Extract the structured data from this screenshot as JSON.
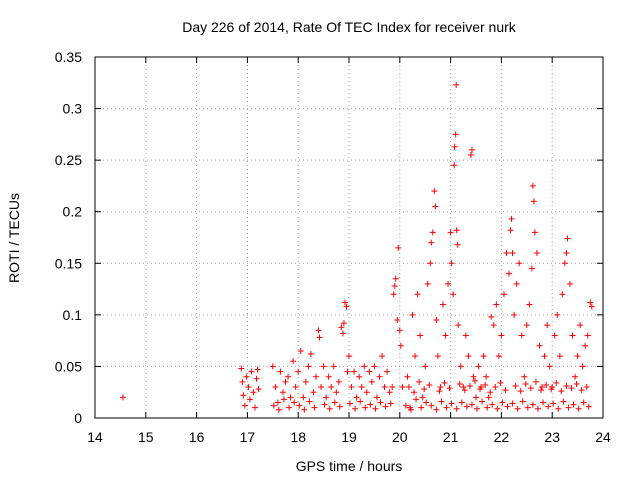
{
  "chart_data": {
    "type": "scatter",
    "title": "Day 226 of 2014, Rate Of TEC Index for receiver nurk",
    "xlabel": "GPS time / hours",
    "ylabel": "ROTI / TECUs",
    "xlim": [
      14,
      24
    ],
    "ylim": [
      0,
      0.35
    ],
    "xticks": [
      14,
      15,
      16,
      17,
      18,
      19,
      20,
      21,
      22,
      23,
      24
    ],
    "yticks": [
      0,
      0.05,
      0.1,
      0.15,
      0.2,
      0.25,
      0.3,
      0.35
    ],
    "xtick_labels": [
      "14",
      "15",
      "16",
      "17",
      "18",
      "19",
      "20",
      "21",
      "22",
      "23",
      "24"
    ],
    "ytick_labels": [
      "0",
      "0.05",
      "0.1",
      "0.15",
      "0.2",
      "0.25",
      "0.3",
      "0.35"
    ],
    "grid": true,
    "marker": "+",
    "color": "#ff0000",
    "series": [
      {
        "name": "ROTI",
        "points": [
          [
            14.55,
            0.02
          ],
          [
            16.88,
            0.048
          ],
          [
            16.9,
            0.035
          ],
          [
            16.92,
            0.022
          ],
          [
            16.95,
            0.012
          ],
          [
            16.98,
            0.04
          ],
          [
            17.02,
            0.03
          ],
          [
            17.05,
            0.018
          ],
          [
            17.08,
            0.045
          ],
          [
            17.12,
            0.025
          ],
          [
            17.15,
            0.01
          ],
          [
            17.18,
            0.038
          ],
          [
            17.2,
            0.047
          ],
          [
            17.22,
            0.028
          ],
          [
            17.5,
            0.05
          ],
          [
            17.55,
            0.03
          ],
          [
            17.6,
            0.015
          ],
          [
            17.65,
            0.045
          ],
          [
            17.7,
            0.025
          ],
          [
            17.75,
            0.035
          ],
          [
            17.8,
            0.04
          ],
          [
            17.85,
            0.02
          ],
          [
            17.9,
            0.055
          ],
          [
            17.95,
            0.03
          ],
          [
            18.0,
            0.045
          ],
          [
            18.05,
            0.065
          ],
          [
            18.1,
            0.02
          ],
          [
            18.15,
            0.035
          ],
          [
            18.2,
            0.05
          ],
          [
            18.25,
            0.062
          ],
          [
            18.3,
            0.025
          ],
          [
            18.35,
            0.04
          ],
          [
            18.4,
            0.085
          ],
          [
            18.42,
            0.078
          ],
          [
            18.45,
            0.03
          ],
          [
            18.5,
            0.05
          ],
          [
            18.55,
            0.02
          ],
          [
            18.6,
            0.04
          ],
          [
            18.65,
            0.03
          ],
          [
            18.7,
            0.05
          ],
          [
            18.75,
            0.025
          ],
          [
            18.8,
            0.035
          ],
          [
            18.85,
            0.088
          ],
          [
            18.88,
            0.082
          ],
          [
            18.9,
            0.092
          ],
          [
            18.92,
            0.112
          ],
          [
            18.95,
            0.108
          ],
          [
            18.97,
            0.045
          ],
          [
            19.0,
            0.06
          ],
          [
            19.05,
            0.03
          ],
          [
            19.1,
            0.045
          ],
          [
            19.15,
            0.02
          ],
          [
            19.2,
            0.04
          ],
          [
            19.25,
            0.03
          ],
          [
            19.3,
            0.05
          ],
          [
            19.35,
            0.025
          ],
          [
            19.4,
            0.045
          ],
          [
            19.45,
            0.035
          ],
          [
            19.5,
            0.05
          ],
          [
            19.55,
            0.02
          ],
          [
            19.6,
            0.04
          ],
          [
            19.65,
            0.06
          ],
          [
            19.7,
            0.03
          ],
          [
            19.75,
            0.045
          ],
          [
            19.8,
            0.025
          ],
          [
            19.85,
            0.03
          ],
          [
            19.88,
            0.12
          ],
          [
            19.9,
            0.128
          ],
          [
            19.92,
            0.135
          ],
          [
            19.95,
            0.095
          ],
          [
            19.97,
            0.165
          ],
          [
            20.0,
            0.085
          ],
          [
            20.02,
            0.07
          ],
          [
            20.05,
            0.03
          ],
          [
            17.52,
            0.012
          ],
          [
            17.62,
            0.008
          ],
          [
            17.72,
            0.018
          ],
          [
            17.82,
            0.01
          ],
          [
            17.92,
            0.015
          ],
          [
            18.02,
            0.012
          ],
          [
            18.12,
            0.008
          ],
          [
            18.22,
            0.016
          ],
          [
            18.32,
            0.01
          ],
          [
            18.52,
            0.013
          ],
          [
            18.62,
            0.009
          ],
          [
            18.72,
            0.015
          ],
          [
            18.82,
            0.011
          ],
          [
            19.02,
            0.014
          ],
          [
            19.12,
            0.009
          ],
          [
            19.22,
            0.016
          ],
          [
            19.32,
            0.01
          ],
          [
            19.42,
            0.013
          ],
          [
            19.52,
            0.009
          ],
          [
            19.62,
            0.015
          ],
          [
            19.72,
            0.011
          ],
          [
            19.82,
            0.014
          ],
          [
            20.15,
            0.04
          ],
          [
            20.2,
            0.01
          ],
          [
            20.25,
            0.1
          ],
          [
            20.3,
            0.06
          ],
          [
            20.35,
            0.12
          ],
          [
            20.4,
            0.08
          ],
          [
            20.45,
            0.02
          ],
          [
            20.5,
            0.05
          ],
          [
            20.55,
            0.13
          ],
          [
            20.6,
            0.15
          ],
          [
            20.62,
            0.17
          ],
          [
            20.65,
            0.18
          ],
          [
            20.68,
            0.22
          ],
          [
            20.7,
            0.205
          ],
          [
            20.72,
            0.095
          ],
          [
            20.75,
            0.06
          ],
          [
            20.8,
            0.03
          ],
          [
            20.85,
            0.11
          ],
          [
            20.9,
            0.08
          ],
          [
            20.95,
            0.13
          ],
          [
            21.0,
            0.18
          ],
          [
            21.02,
            0.15
          ],
          [
            21.05,
            0.12
          ],
          [
            21.07,
            0.245
          ],
          [
            21.08,
            0.263
          ],
          [
            21.1,
            0.275
          ],
          [
            21.11,
            0.323
          ],
          [
            21.12,
            0.182
          ],
          [
            21.14,
            0.168
          ],
          [
            21.15,
            0.09
          ],
          [
            21.2,
            0.05
          ],
          [
            21.25,
            0.03
          ],
          [
            21.3,
            0.08
          ],
          [
            21.35,
            0.06
          ],
          [
            21.4,
            0.255
          ],
          [
            21.42,
            0.26
          ],
          [
            21.45,
            0.04
          ],
          [
            21.5,
            0.02
          ],
          [
            21.55,
            0.05
          ],
          [
            21.6,
            0.03
          ],
          [
            21.65,
            0.06
          ],
          [
            21.7,
            0.04
          ],
          [
            21.75,
            0.02
          ],
          [
            21.8,
            0.098
          ],
          [
            21.85,
            0.09
          ],
          [
            21.9,
            0.11
          ],
          [
            21.95,
            0.06
          ],
          [
            22.0,
            0.08
          ],
          [
            22.05,
            0.12
          ],
          [
            22.1,
            0.16
          ],
          [
            22.15,
            0.14
          ],
          [
            22.18,
            0.182
          ],
          [
            22.2,
            0.193
          ],
          [
            22.22,
            0.16
          ],
          [
            22.25,
            0.1
          ],
          [
            22.3,
            0.13
          ],
          [
            22.35,
            0.15
          ],
          [
            22.4,
            0.08
          ],
          [
            22.45,
            0.04
          ],
          [
            22.5,
            0.09
          ],
          [
            22.55,
            0.11
          ],
          [
            22.6,
            0.145
          ],
          [
            22.62,
            0.225
          ],
          [
            22.64,
            0.21
          ],
          [
            22.66,
            0.18
          ],
          [
            22.7,
            0.16
          ],
          [
            22.75,
            0.07
          ],
          [
            22.8,
            0.03
          ],
          [
            22.85,
            0.06
          ],
          [
            22.9,
            0.09
          ],
          [
            22.95,
            0.05
          ],
          [
            23.0,
            0.03
          ],
          [
            23.05,
            0.08
          ],
          [
            23.1,
            0.1
          ],
          [
            23.15,
            0.06
          ],
          [
            23.2,
            0.12
          ],
          [
            23.25,
            0.15
          ],
          [
            23.28,
            0.16
          ],
          [
            23.3,
            0.174
          ],
          [
            23.35,
            0.13
          ],
          [
            23.4,
            0.08
          ],
          [
            23.45,
            0.04
          ],
          [
            23.5,
            0.06
          ],
          [
            23.55,
            0.09
          ],
          [
            23.6,
            0.05
          ],
          [
            23.65,
            0.07
          ],
          [
            23.7,
            0.08
          ],
          [
            23.75,
            0.112
          ],
          [
            23.78,
            0.108
          ],
          [
            20.12,
            0.012
          ],
          [
            20.22,
            0.008
          ],
          [
            20.32,
            0.018
          ],
          [
            20.42,
            0.01
          ],
          [
            20.52,
            0.015
          ],
          [
            20.62,
            0.012
          ],
          [
            20.72,
            0.008
          ],
          [
            20.82,
            0.016
          ],
          [
            20.92,
            0.01
          ],
          [
            21.02,
            0.014
          ],
          [
            21.12,
            0.009
          ],
          [
            21.22,
            0.015
          ],
          [
            21.32,
            0.011
          ],
          [
            21.42,
            0.013
          ],
          [
            21.52,
            0.009
          ],
          [
            21.62,
            0.016
          ],
          [
            21.72,
            0.01
          ],
          [
            21.82,
            0.013
          ],
          [
            21.92,
            0.009
          ],
          [
            22.02,
            0.015
          ],
          [
            22.12,
            0.011
          ],
          [
            22.22,
            0.014
          ],
          [
            22.32,
            0.009
          ],
          [
            22.42,
            0.016
          ],
          [
            22.52,
            0.01
          ],
          [
            22.62,
            0.013
          ],
          [
            22.72,
            0.009
          ],
          [
            22.82,
            0.015
          ],
          [
            22.92,
            0.011
          ],
          [
            23.02,
            0.014
          ],
          [
            23.12,
            0.009
          ],
          [
            23.22,
            0.016
          ],
          [
            23.32,
            0.01
          ],
          [
            23.42,
            0.013
          ],
          [
            23.52,
            0.009
          ],
          [
            23.62,
            0.015
          ],
          [
            23.72,
            0.011
          ],
          [
            20.18,
            0.03
          ],
          [
            20.28,
            0.025
          ],
          [
            20.38,
            0.035
          ],
          [
            20.48,
            0.028
          ],
          [
            20.58,
            0.032
          ],
          [
            20.78,
            0.026
          ],
          [
            20.88,
            0.034
          ],
          [
            20.98,
            0.029
          ],
          [
            21.18,
            0.033
          ],
          [
            21.28,
            0.027
          ],
          [
            21.38,
            0.031
          ],
          [
            21.48,
            0.036
          ],
          [
            21.58,
            0.028
          ],
          [
            21.68,
            0.032
          ],
          [
            21.78,
            0.025
          ],
          [
            21.88,
            0.03
          ],
          [
            21.98,
            0.034
          ],
          [
            22.08,
            0.027
          ],
          [
            22.28,
            0.031
          ],
          [
            22.38,
            0.026
          ],
          [
            22.48,
            0.033
          ],
          [
            22.58,
            0.029
          ],
          [
            22.68,
            0.035
          ],
          [
            22.78,
            0.027
          ],
          [
            22.88,
            0.032
          ],
          [
            22.98,
            0.028
          ],
          [
            23.08,
            0.034
          ],
          [
            23.18,
            0.026
          ],
          [
            23.28,
            0.031
          ],
          [
            23.38,
            0.029
          ],
          [
            23.48,
            0.033
          ],
          [
            23.58,
            0.027
          ],
          [
            23.68,
            0.03
          ]
        ]
      }
    ]
  }
}
